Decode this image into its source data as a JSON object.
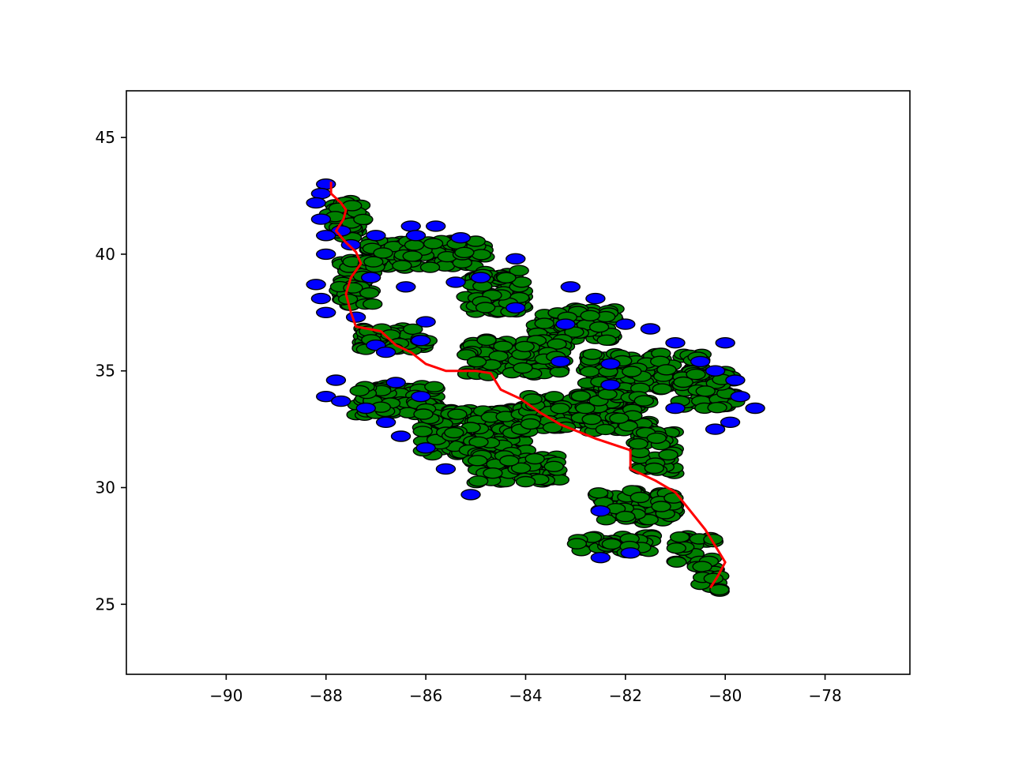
{
  "chart_data": {
    "type": "scatter",
    "title": "",
    "xlabel": "",
    "ylabel": "",
    "xlim": [
      -92.0,
      -76.3
    ],
    "ylim": [
      22.0,
      47.0
    ],
    "x_ticks": [
      -90,
      -88,
      -86,
      -84,
      -82,
      -80,
      -78
    ],
    "x_tick_labels": [
      "−90",
      "−88",
      "−86",
      "−84",
      "−82",
      "−80",
      "−78"
    ],
    "y_ticks": [
      25,
      30,
      35,
      40,
      45
    ],
    "y_tick_labels": [
      "25",
      "30",
      "35",
      "40",
      "45"
    ],
    "grid": false,
    "legend": "none",
    "colors": {
      "green_markers": "#008000",
      "blue_markers": "#0000ff",
      "marker_edge": "#000000",
      "route_line": "#ff0000"
    },
    "marker_shape": "ellipse",
    "green_clusters": [
      {
        "center": [
          -87.6,
          41.5
        ],
        "spread": [
          0.35,
          0.8
        ],
        "count": 50
      },
      {
        "center": [
          -87.4,
          38.8
        ],
        "spread": [
          0.35,
          1.0
        ],
        "count": 60
      },
      {
        "center": [
          -86.0,
          40.0
        ],
        "spread": [
          1.2,
          0.6
        ],
        "count": 110
      },
      {
        "center": [
          -84.6,
          38.4
        ],
        "spread": [
          0.6,
          0.9
        ],
        "count": 70
      },
      {
        "center": [
          -83.0,
          37.0
        ],
        "spread": [
          0.8,
          0.7
        ],
        "count": 70
      },
      {
        "center": [
          -86.6,
          36.4
        ],
        "spread": [
          0.7,
          0.5
        ],
        "count": 50
      },
      {
        "center": [
          -84.2,
          35.6
        ],
        "spread": [
          1.0,
          0.8
        ],
        "count": 100
      },
      {
        "center": [
          -81.6,
          35.0
        ],
        "spread": [
          1.2,
          0.8
        ],
        "count": 130
      },
      {
        "center": [
          -80.4,
          34.2
        ],
        "spread": [
          0.6,
          0.8
        ],
        "count": 60
      },
      {
        "center": [
          -86.6,
          33.8
        ],
        "spread": [
          0.8,
          0.7
        ],
        "count": 80
      },
      {
        "center": [
          -85.0,
          32.4
        ],
        "spread": [
          1.1,
          1.0
        ],
        "count": 160
      },
      {
        "center": [
          -82.8,
          33.2
        ],
        "spread": [
          1.3,
          0.8
        ],
        "count": 160
      },
      {
        "center": [
          -84.2,
          30.8
        ],
        "spread": [
          0.9,
          0.6
        ],
        "count": 60
      },
      {
        "center": [
          -81.4,
          31.5
        ],
        "spread": [
          0.4,
          0.9
        ],
        "count": 45
      },
      {
        "center": [
          -81.8,
          29.2
        ],
        "spread": [
          0.8,
          0.7
        ],
        "count": 80
      },
      {
        "center": [
          -82.2,
          27.6
        ],
        "spread": [
          0.8,
          0.4
        ],
        "count": 40
      },
      {
        "center": [
          -80.6,
          27.2
        ],
        "spread": [
          0.4,
          0.8
        ],
        "count": 35
      },
      {
        "center": [
          -80.3,
          25.9
        ],
        "spread": [
          0.2,
          0.35
        ],
        "count": 12
      }
    ],
    "blue_points": [
      [
        -88.0,
        43.0
      ],
      [
        -88.1,
        42.6
      ],
      [
        -88.2,
        42.2
      ],
      [
        -88.1,
        41.5
      ],
      [
        -87.7,
        41.0
      ],
      [
        -88.0,
        40.8
      ],
      [
        -87.5,
        40.4
      ],
      [
        -88.0,
        40.0
      ],
      [
        -87.0,
        40.8
      ],
      [
        -86.3,
        41.2
      ],
      [
        -85.8,
        41.2
      ],
      [
        -86.2,
        40.8
      ],
      [
        -85.3,
        40.7
      ],
      [
        -84.2,
        39.8
      ],
      [
        -84.9,
        39.0
      ],
      [
        -85.4,
        38.8
      ],
      [
        -84.2,
        37.7
      ],
      [
        -83.1,
        38.6
      ],
      [
        -82.6,
        38.1
      ],
      [
        -83.2,
        37.0
      ],
      [
        -82.0,
        37.0
      ],
      [
        -81.5,
        36.8
      ],
      [
        -81.0,
        36.2
      ],
      [
        -80.5,
        35.4
      ],
      [
        -80.0,
        36.2
      ],
      [
        -80.2,
        35.0
      ],
      [
        -79.8,
        34.6
      ],
      [
        -79.7,
        33.9
      ],
      [
        -79.4,
        33.4
      ],
      [
        -79.9,
        32.8
      ],
      [
        -80.2,
        32.5
      ],
      [
        -81.0,
        33.4
      ],
      [
        -82.3,
        35.3
      ],
      [
        -82.3,
        34.4
      ],
      [
        -83.3,
        35.4
      ],
      [
        -88.2,
        38.7
      ],
      [
        -88.1,
        38.1
      ],
      [
        -88.0,
        37.5
      ],
      [
        -87.4,
        37.3
      ],
      [
        -87.0,
        36.1
      ],
      [
        -86.8,
        35.8
      ],
      [
        -86.1,
        36.3
      ],
      [
        -86.0,
        37.1
      ],
      [
        -87.8,
        34.6
      ],
      [
        -88.0,
        33.9
      ],
      [
        -87.7,
        33.7
      ],
      [
        -87.2,
        33.4
      ],
      [
        -86.8,
        32.8
      ],
      [
        -86.5,
        32.2
      ],
      [
        -86.0,
        31.7
      ],
      [
        -85.6,
        30.8
      ],
      [
        -85.1,
        29.7
      ],
      [
        -86.1,
        33.9
      ],
      [
        -86.6,
        34.5
      ],
      [
        -82.5,
        29.0
      ],
      [
        -82.5,
        27.0
      ],
      [
        -81.9,
        27.2
      ],
      [
        -87.1,
        39.0
      ],
      [
        -86.4,
        38.6
      ]
    ],
    "route_line": [
      [
        -87.9,
        43.1
      ],
      [
        -87.9,
        42.6
      ],
      [
        -87.7,
        42.2
      ],
      [
        -87.6,
        41.9
      ],
      [
        -87.65,
        41.5
      ],
      [
        -87.8,
        41.0
      ],
      [
        -87.6,
        40.5
      ],
      [
        -87.4,
        40.1
      ],
      [
        -87.3,
        39.6
      ],
      [
        -87.5,
        39.0
      ],
      [
        -87.6,
        38.3
      ],
      [
        -87.5,
        37.5
      ],
      [
        -87.4,
        36.9
      ],
      [
        -86.9,
        36.7
      ],
      [
        -86.6,
        36.1
      ],
      [
        -86.3,
        35.8
      ],
      [
        -86.0,
        35.3
      ],
      [
        -85.6,
        35.0
      ],
      [
        -85.0,
        35.0
      ],
      [
        -84.7,
        34.9
      ],
      [
        -84.5,
        34.2
      ],
      [
        -84.1,
        33.8
      ],
      [
        -83.7,
        33.2
      ],
      [
        -83.3,
        32.7
      ],
      [
        -82.6,
        32.1
      ],
      [
        -81.9,
        31.6
      ],
      [
        -81.9,
        30.8
      ],
      [
        -81.4,
        30.3
      ],
      [
        -81.0,
        29.8
      ],
      [
        -80.7,
        29.0
      ],
      [
        -80.4,
        28.2
      ],
      [
        -80.2,
        27.5
      ],
      [
        -80.0,
        26.8
      ],
      [
        -80.15,
        26.2
      ],
      [
        -80.3,
        25.7
      ]
    ]
  }
}
